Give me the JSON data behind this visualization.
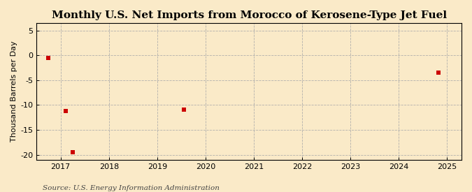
{
  "title": "Monthly U.S. Net Imports from Morocco of Kerosene-Type Jet Fuel",
  "ylabel": "Thousand Barrels per Day",
  "source": "Source: U.S. Energy Information Administration",
  "background_color": "#faeac8",
  "plot_bg_color": "#faeac8",
  "point_color": "#cc0000",
  "xlim": [
    2016.5,
    2025.3
  ],
  "ylim": [
    -21,
    6.5
  ],
  "yticks": [
    5,
    0,
    -5,
    -10,
    -15,
    -20
  ],
  "xticks": [
    2017,
    2018,
    2019,
    2020,
    2021,
    2022,
    2023,
    2024,
    2025
  ],
  "x_data": [
    2016.75,
    2017.1,
    2017.25,
    2019.55,
    2024.82
  ],
  "y_data": [
    -0.5,
    -11.2,
    -19.5,
    -11.0,
    -3.5
  ],
  "marker": "s",
  "marker_size": 4,
  "title_fontsize": 11,
  "axis_fontsize": 8,
  "ylabel_fontsize": 8,
  "source_fontsize": 7.5
}
